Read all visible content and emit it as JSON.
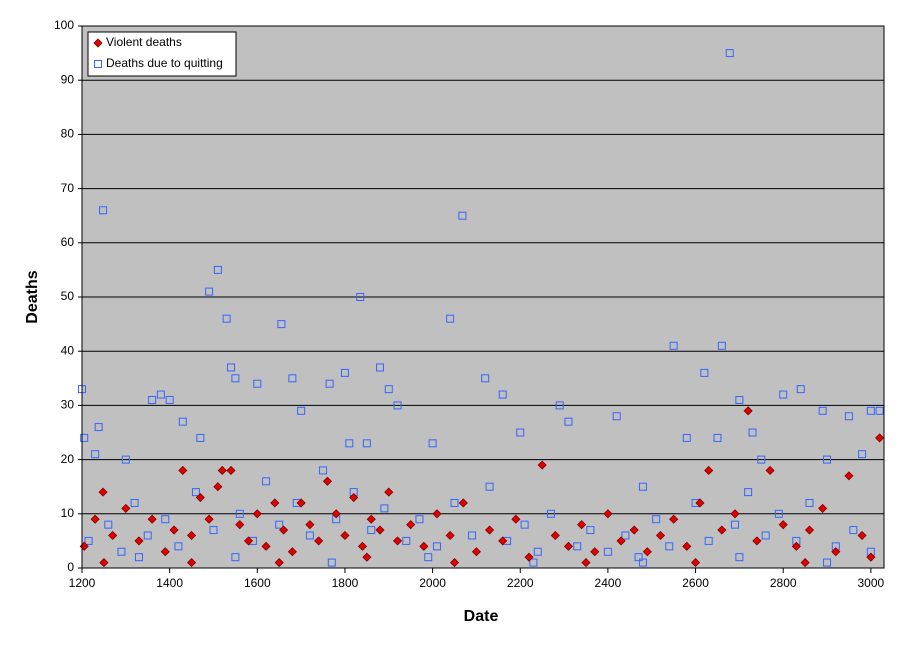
{
  "chart_data": {
    "type": "scatter",
    "xlabel": "Date",
    "ylabel": "Deaths",
    "xlim": [
      1200,
      3030
    ],
    "ylim": [
      0,
      100
    ],
    "xticks": [
      1200,
      1400,
      1600,
      1800,
      2000,
      2200,
      2400,
      2600,
      2800,
      3000
    ],
    "yticks": [
      0,
      10,
      20,
      30,
      40,
      50,
      60,
      70,
      80,
      90,
      100
    ],
    "grid": true,
    "legend": "upper left",
    "series": [
      {
        "name": "Violent deaths",
        "color": "#e00000",
        "marker": "diamond",
        "x": [
          1205,
          1230,
          1248,
          1270,
          1300,
          1330,
          1360,
          1390,
          1410,
          1430,
          1450,
          1470,
          1490,
          1510,
          1520,
          1540,
          1560,
          1580,
          1600,
          1620,
          1640,
          1660,
          1680,
          1700,
          1720,
          1740,
          1760,
          1780,
          1800,
          1820,
          1840,
          1860,
          1880,
          1900,
          1920,
          1950,
          1980,
          2010,
          2040,
          2070,
          2100,
          2130,
          2160,
          2190,
          2220,
          2250,
          2280,
          2310,
          2340,
          2370,
          2400,
          2430,
          2460,
          2490,
          2520,
          2550,
          2580,
          2610,
          2630,
          2660,
          2690,
          2720,
          2740,
          2770,
          2800,
          2830,
          2860,
          2890,
          2920,
          2950,
          2980,
          3000,
          3020,
          1250,
          1450,
          1650,
          1850,
          2050,
          2350,
          2600,
          2850
        ],
        "values": [
          4,
          9,
          14,
          6,
          11,
          5,
          9,
          3,
          7,
          18,
          6,
          13,
          9,
          15,
          18,
          18,
          8,
          5,
          10,
          4,
          12,
          7,
          3,
          12,
          8,
          5,
          16,
          10,
          6,
          13,
          4,
          9,
          7,
          14,
          5,
          8,
          4,
          10,
          6,
          12,
          3,
          7,
          5,
          9,
          2,
          19,
          6,
          4,
          8,
          3,
          10,
          5,
          7,
          3,
          6,
          9,
          4,
          12,
          18,
          7,
          10,
          29,
          5,
          18,
          8,
          4,
          7,
          11,
          3,
          17,
          6,
          2,
          24,
          1,
          1,
          1,
          2,
          1,
          1,
          1,
          1
        ]
      },
      {
        "name": "Deaths due to quitting",
        "color": "#3366ff",
        "marker": "square",
        "x": [
          1200,
          1205,
          1248,
          1238,
          1360,
          1380,
          1400,
          1490,
          1510,
          1530,
          1540,
          1550,
          1655,
          1680,
          1765,
          1800,
          1835,
          1880,
          1900,
          2040,
          2068,
          2120,
          2160,
          2290,
          2420,
          2550,
          2620,
          2660,
          2678,
          2700,
          2800,
          2840,
          2890,
          3000,
          3020,
          1230,
          1300,
          1430,
          1600,
          1700,
          1920,
          2000,
          2200,
          2310,
          2480,
          2580,
          2730,
          2950,
          2980,
          1810,
          1470,
          1850,
          2650,
          2750,
          2900,
          1215,
          1260,
          1290,
          1320,
          1350,
          1390,
          1420,
          1460,
          1500,
          1560,
          1590,
          1620,
          1650,
          1690,
          1720,
          1750,
          1780,
          1820,
          1860,
          1890,
          1940,
          1970,
          2010,
          2050,
          2090,
          2130,
          2170,
          2210,
          2240,
          2270,
          2330,
          2360,
          2400,
          2440,
          2470,
          2510,
          2540,
          2600,
          2630,
          2690,
          2720,
          2760,
          2790,
          2830,
          2860,
          2920,
          2960,
          3000,
          1330,
          1550,
          1770,
          1990,
          2230,
          2480,
          2700,
          2900
        ],
        "values": [
          33,
          24,
          66,
          26,
          31,
          32,
          31,
          51,
          55,
          46,
          37,
          35,
          45,
          35,
          34,
          36,
          50,
          37,
          33,
          46,
          65,
          35,
          32,
          30,
          28,
          41,
          36,
          41,
          95,
          31,
          32,
          33,
          29,
          29,
          29,
          21,
          20,
          27,
          34,
          29,
          30,
          23,
          25,
          27,
          15,
          24,
          25,
          28,
          21,
          23,
          24,
          23,
          24,
          20,
          20,
          5,
          8,
          3,
          12,
          6,
          9,
          4,
          14,
          7,
          10,
          5,
          16,
          8,
          12,
          6,
          18,
          9,
          14,
          7,
          11,
          5,
          9,
          4,
          12,
          6,
          15,
          5,
          8,
          3,
          10,
          4,
          7,
          3,
          6,
          2,
          9,
          4,
          12,
          5,
          8,
          14,
          6,
          10,
          5,
          12,
          4,
          7,
          3,
          2,
          2,
          1,
          2,
          1,
          1,
          2,
          1
        ]
      }
    ]
  }
}
